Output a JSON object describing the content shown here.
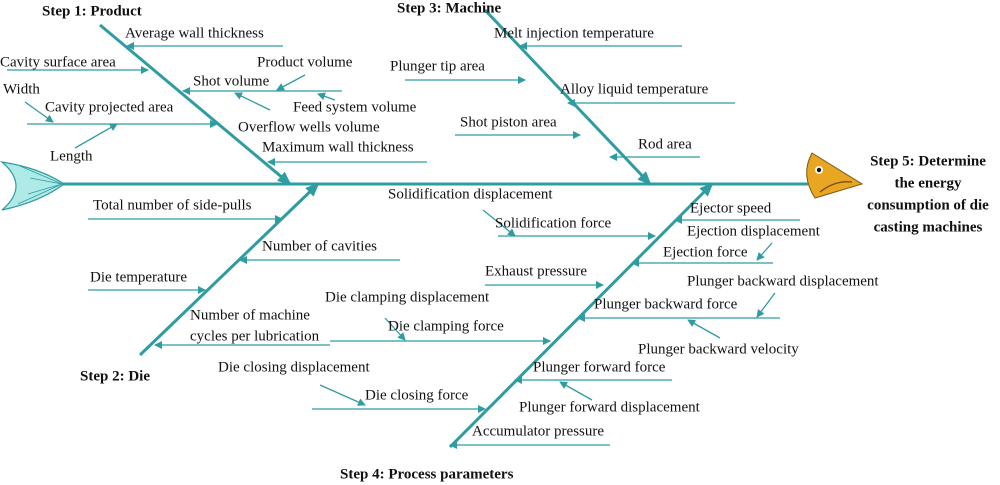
{
  "colors": {
    "line": "#2f9ca2",
    "head": "#e8a623",
    "tail": "#aeeae6"
  },
  "steps": {
    "product": "Step 1: Product",
    "die": "Step 2: Die",
    "machine": "Step 3: Machine",
    "process": "Step 4: Process parameters",
    "goal": [
      "Step 5: Determine",
      "the energy",
      "consumption of die",
      "casting machines"
    ]
  },
  "product": {
    "average_wall_thickness": "Average wall thickness",
    "cavity_surface_area": "Cavity surface area",
    "product_volume": "Product volume",
    "shot_volume": "Shot volume",
    "width": "Width",
    "feed_system_volume": "Feed system volume",
    "cavity_projected_area": "Cavity projected area",
    "overflow_wells_volume": "Overflow wells volume",
    "length": "Length",
    "maximum_wall_thickness": "Maximum wall thickness"
  },
  "machine": {
    "melt_injection_temperature": "Melt injection temperature",
    "plunger_tip_area": "Plunger tip area",
    "alloy_liquid_temperature": "Alloy liquid temperature",
    "shot_piston_area": "Shot piston area",
    "rod_area": "Rod area"
  },
  "die": {
    "side_pulls": "Total number of side-pulls",
    "cavities": "Number of cavities",
    "die_temperature": "Die temperature",
    "cycles_1": "Number of machine",
    "cycles_2": "cycles per lubrication"
  },
  "process": {
    "solidification_displacement": "Solidification displacement",
    "solidification_force": "Solidification force",
    "ejector_speed": "Ejector speed",
    "ejection_displacement": "Ejection displacement",
    "ejection_force": "Ejection force",
    "exhaust_pressure": "Exhaust pressure",
    "plunger_backward_displacement": "Plunger backward displacement",
    "die_clamping_displacement": "Die clamping displacement",
    "plunger_backward_force": "Plunger backward force",
    "die_clamping_force": "Die clamping force",
    "plunger_backward_velocity": "Plunger backward velocity",
    "die_closing_displacement": "Die closing displacement",
    "plunger_forward_force": "Plunger forward force",
    "die_closing_force": "Die closing force",
    "plunger_forward_displacement": "Plunger forward displacement",
    "accumulator_pressure": "Accumulator pressure"
  }
}
